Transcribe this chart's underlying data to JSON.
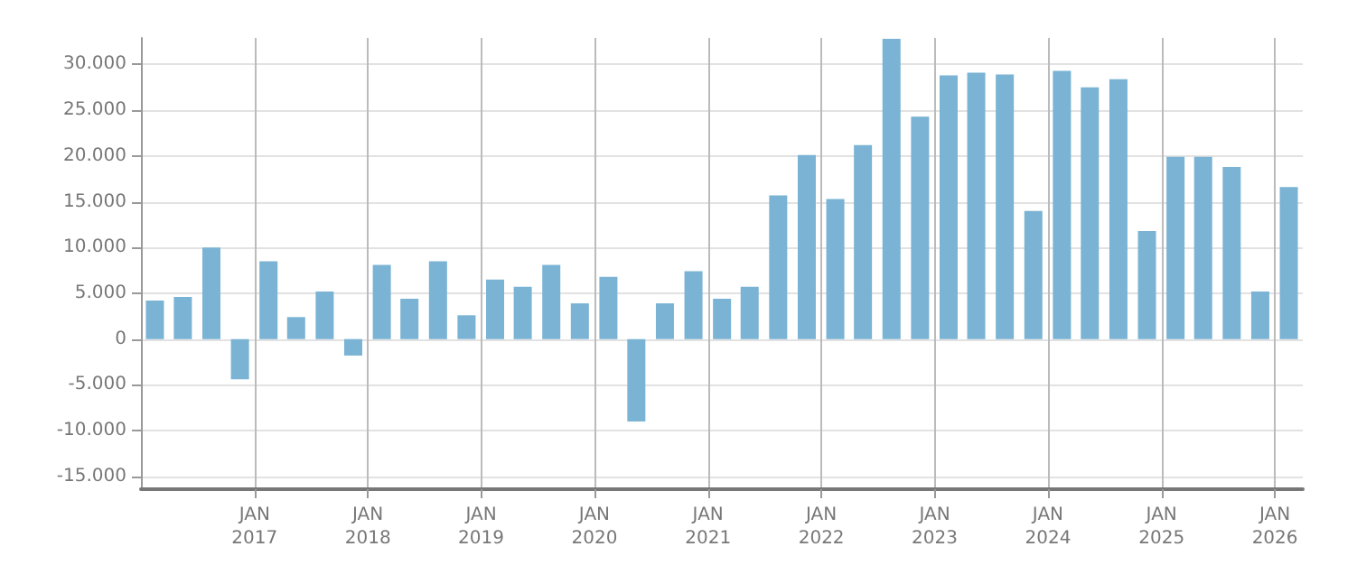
{
  "chart_data": {
    "type": "bar",
    "x": [
      "2016-02-15",
      "2016-05-15",
      "2016-08-15",
      "2016-11-15",
      "2017-02-15",
      "2017-05-15",
      "2017-08-15",
      "2017-11-15",
      "2018-02-15",
      "2018-05-15",
      "2018-08-15",
      "2018-11-15",
      "2019-02-15",
      "2019-05-15",
      "2019-08-15",
      "2019-11-15",
      "2020-02-15",
      "2020-05-15",
      "2020-08-15",
      "2020-11-15",
      "2021-02-15",
      "2021-05-15",
      "2021-08-15",
      "2021-11-15",
      "2022-02-15",
      "2022-05-15",
      "2022-08-15",
      "2022-11-15",
      "2023-02-15",
      "2023-05-15",
      "2023-08-15",
      "2023-11-15",
      "2024-02-15",
      "2024-05-15",
      "2024-08-15",
      "2024-11-15",
      "2025-02-15",
      "2025-05-15",
      "2025-08-15",
      "2025-11-15",
      "2026-02-15"
    ],
    "values": [
      4200,
      4600,
      10000,
      -4400,
      8500,
      2400,
      5200,
      -1800,
      8100,
      4400,
      8500,
      2600,
      6500,
      5700,
      8100,
      3900,
      6800,
      -9000,
      3900,
      7400,
      4400,
      5700,
      15700,
      20100,
      15300,
      21200,
      32800,
      24300,
      28800,
      29100,
      28900,
      14000,
      29300,
      27500,
      28400,
      11800,
      19900,
      19900,
      18800,
      5200,
      16600
    ],
    "color": "#7ab3d4",
    "xlim": [
      "2016-01-01",
      "2026-04-01"
    ],
    "xticks": [
      {
        "value": "2017-01-01",
        "label": "JAN\n2017"
      },
      {
        "value": "2018-01-01",
        "label": "JAN\n2018"
      },
      {
        "value": "2019-01-01",
        "label": "JAN\n2019"
      },
      {
        "value": "2020-01-01",
        "label": "JAN\n2020"
      },
      {
        "value": "2021-01-01",
        "label": "JAN\n2021"
      },
      {
        "value": "2022-01-01",
        "label": "JAN\n2022"
      },
      {
        "value": "2023-01-01",
        "label": "JAN\n2023"
      },
      {
        "value": "2024-01-01",
        "label": "JAN\n2024"
      },
      {
        "value": "2025-01-01",
        "label": "JAN\n2025"
      },
      {
        "value": "2026-01-01",
        "label": "JAN\n2026"
      }
    ],
    "ylim": [
      -16400,
      32900
    ],
    "yticks": [
      {
        "value": -15000,
        "label": "-15.000"
      },
      {
        "value": -10000,
        "label": "-10.000"
      },
      {
        "value": -5000,
        "label": "-5.000"
      },
      0,
      {
        "value": 5000,
        "label": "5.000"
      },
      {
        "value": 10000,
        "label": "10.000"
      },
      {
        "value": 15000,
        "label": "15.000"
      },
      {
        "value": 20000,
        "label": "20.000"
      },
      {
        "value": 25000,
        "label": "25.000"
      },
      {
        "value": 30000,
        "label": "30.000"
      }
    ],
    "grid": true
  }
}
